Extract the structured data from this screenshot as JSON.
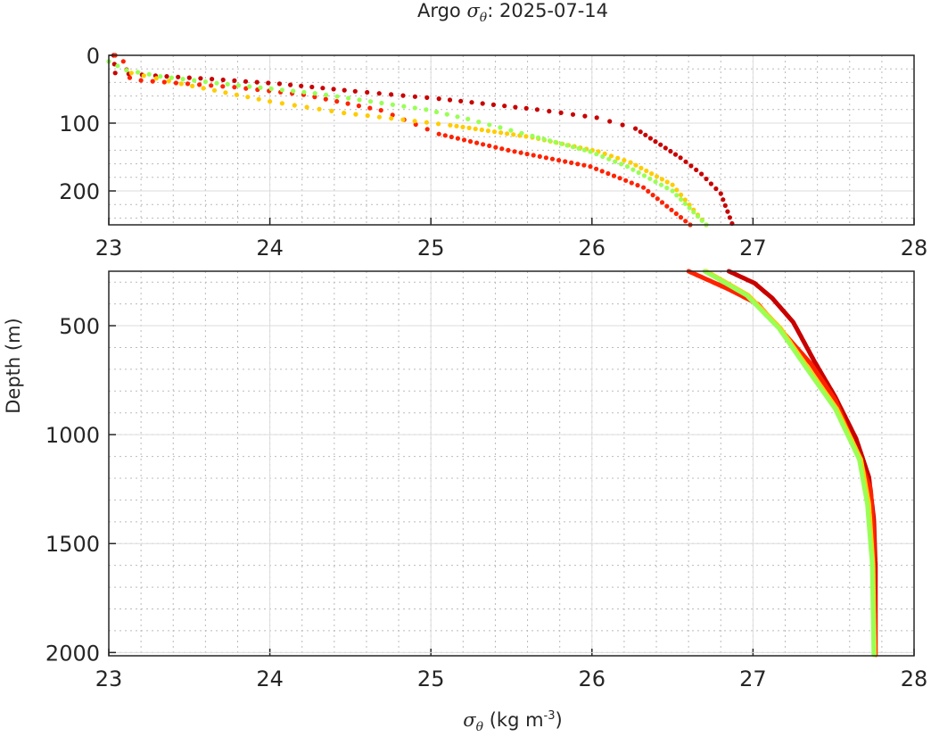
{
  "title": {
    "prefix": "Argo ",
    "symbol": "σ",
    "sub": "θ",
    "suffix": ": 2025-07-14"
  },
  "xlabel": {
    "symbol": "σ",
    "sub": "θ",
    "text": " (kg m",
    "sup": "-3",
    "close": ")"
  },
  "ylabel": "Depth (m)",
  "chart_data": [
    {
      "type": "scatter",
      "panel": "top",
      "xlim": [
        23,
        28
      ],
      "ylim": [
        0,
        250
      ],
      "y_reversed": true,
      "grid": true,
      "xticks": [
        "23",
        "24",
        "25",
        "26",
        "27",
        "28"
      ],
      "yticks": [
        "0",
        "100",
        "200"
      ],
      "series": [
        {
          "color": "#c80000",
          "sigma": [
            23.03,
            23.04,
            23.29,
            23.64,
            24.06,
            24.53,
            25.05,
            25.66,
            26.03,
            26.27,
            26.55,
            26.68,
            26.8,
            26.87
          ],
          "depth": [
            0,
            26,
            30,
            35,
            42,
            53,
            64,
            80,
            92,
            108,
            151,
            175,
            204,
            248
          ]
        },
        {
          "color": "#ff2200",
          "sigma": [
            23.04,
            23.09,
            23.13,
            23.2,
            23.78,
            24.21,
            24.69,
            25.05,
            25.48,
            25.99,
            26.32,
            26.61
          ],
          "depth": [
            0,
            9,
            33,
            37,
            47,
            58,
            81,
            116,
            140,
            164,
            195,
            250
          ]
        },
        {
          "color": "#ffcc00",
          "sigma": [
            23.14,
            23.45,
            24.0,
            24.46,
            25.12,
            25.63,
            26.04,
            26.24,
            26.5,
            26.71
          ],
          "depth": [
            26,
            42,
            68,
            85,
            103,
            121,
            142,
            158,
            191,
            250
          ]
        },
        {
          "color": "#99ff55",
          "sigma": [
            23.0,
            23.11,
            23.32,
            23.67,
            24.28,
            24.97,
            25.23,
            25.63,
            25.99,
            26.22,
            26.5,
            26.71
          ],
          "depth": [
            9,
            22,
            31,
            41,
            56,
            80,
            94,
            119,
            142,
            164,
            200,
            250
          ]
        }
      ]
    },
    {
      "type": "line",
      "panel": "bottom",
      "xlim": [
        23,
        28
      ],
      "ylim": [
        250,
        2015
      ],
      "y_reversed": true,
      "grid": true,
      "xticks": [
        "23",
        "24",
        "25",
        "26",
        "27",
        "28"
      ],
      "yticks": [
        "500",
        "1000",
        "1500",
        "2000"
      ],
      "series": [
        {
          "color": "#c80000",
          "sigma": [
            26.85,
            27.01,
            27.12,
            27.25,
            27.38,
            27.51,
            27.64,
            27.72,
            27.75,
            27.76,
            27.76
          ],
          "depth": [
            250,
            305,
            374,
            484,
            662,
            826,
            1018,
            1196,
            1388,
            1593,
            2011
          ]
        },
        {
          "color": "#ff2200",
          "sigma": [
            26.6,
            26.85,
            27.03,
            27.18,
            27.36,
            27.51,
            27.64,
            27.73,
            27.75,
            27.76
          ],
          "depth": [
            250,
            333,
            401,
            525,
            675,
            840,
            1073,
            1250,
            1456,
            2011
          ]
        },
        {
          "color": "#ffcc00",
          "sigma": [
            26.71,
            26.97,
            27.17,
            27.35,
            27.52,
            27.67,
            27.72,
            27.745,
            27.755
          ],
          "depth": [
            250,
            360,
            511,
            703,
            881,
            1114,
            1319,
            1593,
            2011
          ]
        },
        {
          "color": "#99ff55",
          "sigma": [
            26.7,
            26.96,
            27.16,
            27.34,
            27.51,
            27.66,
            27.71,
            27.74,
            27.75
          ],
          "depth": [
            250,
            360,
            511,
            703,
            881,
            1114,
            1319,
            1593,
            2011
          ]
        }
      ]
    }
  ]
}
